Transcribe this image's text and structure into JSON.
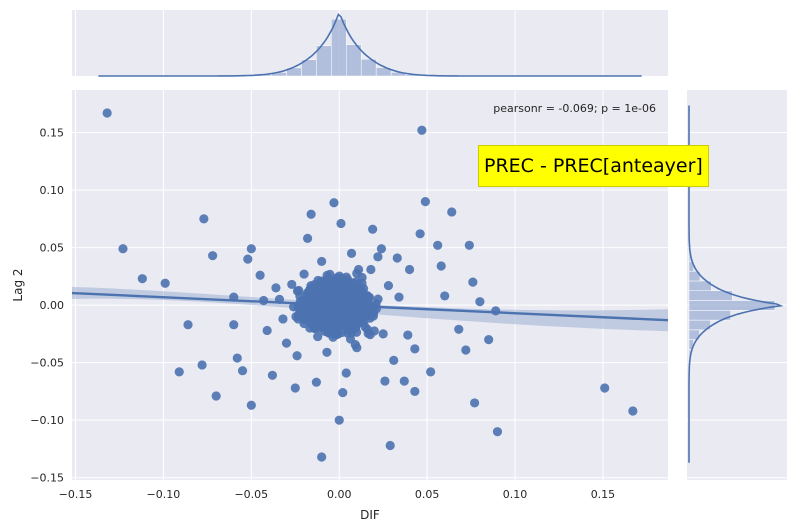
{
  "caption": "PREC - PREC[anteayer]",
  "chart_data": {
    "type": "scatter",
    "title": "",
    "xlabel": "DIF",
    "ylabel": "Lag 2",
    "xlim": [
      -0.152,
      0.187
    ],
    "ylim": [
      -0.152,
      0.187
    ],
    "xticks": [
      "−0.15",
      "−0.10",
      "−0.05",
      "0.00",
      "0.05",
      "0.10",
      "0.15"
    ],
    "yticks": [
      "−0.15",
      "−0.10",
      "−0.05",
      "0.00",
      "0.05",
      "0.10",
      "0.15"
    ],
    "xtick_values": [
      -0.15,
      -0.1,
      -0.05,
      0.0,
      0.05,
      0.1,
      0.15
    ],
    "ytick_values": [
      -0.15,
      -0.1,
      -0.05,
      0.0,
      0.05,
      0.1,
      0.15
    ],
    "annotation": "pearsonr = -0.069; p = 1e-06",
    "grid": true,
    "regression": {
      "x": [
        -0.152,
        0.187
      ],
      "y": [
        0.0105,
        -0.0131
      ]
    },
    "points": [
      [
        -0.132,
        0.167
      ],
      [
        0.047,
        0.152
      ],
      [
        -0.123,
        0.049
      ],
      [
        -0.112,
        0.023
      ],
      [
        -0.099,
        0.019
      ],
      [
        -0.086,
        -0.017
      ],
      [
        -0.077,
        0.075
      ],
      [
        -0.072,
        0.043
      ],
      [
        -0.06,
        0.007
      ],
      [
        -0.06,
        -0.017
      ],
      [
        -0.058,
        -0.046
      ],
      [
        -0.055,
        -0.057
      ],
      [
        -0.052,
        0.04
      ],
      [
        -0.05,
        0.049
      ],
      [
        -0.045,
        0.026
      ],
      [
        -0.043,
        0.004
      ],
      [
        -0.041,
        -0.022
      ],
      [
        -0.038,
        -0.061
      ],
      [
        -0.034,
        0.005
      ],
      [
        -0.03,
        -0.033
      ],
      [
        -0.027,
        0.018
      ],
      [
        -0.024,
        -0.044
      ],
      [
        -0.02,
        0.027
      ],
      [
        -0.016,
        0.079
      ],
      [
        -0.013,
        -0.067
      ],
      [
        -0.01,
        0.038
      ],
      [
        -0.007,
        -0.041
      ],
      [
        -0.004,
        0.012
      ],
      [
        0.001,
        0.071
      ],
      [
        0.004,
        -0.059
      ],
      [
        0.007,
        0.045
      ],
      [
        0.01,
        -0.037
      ],
      [
        0.013,
        0.024
      ],
      [
        0.016,
        -0.021
      ],
      [
        0.019,
        0.066
      ],
      [
        0.022,
        0.042
      ],
      [
        0.025,
        -0.025
      ],
      [
        0.028,
        0.017
      ],
      [
        0.031,
        -0.048
      ],
      [
        0.034,
        0.007
      ],
      [
        0.037,
        -0.066
      ],
      [
        0.04,
        0.031
      ],
      [
        0.043,
        -0.038
      ],
      [
        0.046,
        0.062
      ],
      [
        0.049,
        0.09
      ],
      [
        0.052,
        -0.058
      ],
      [
        0.056,
        0.052
      ],
      [
        0.06,
        0.008
      ],
      [
        0.064,
        0.081
      ],
      [
        0.068,
        -0.021
      ],
      [
        0.072,
        -0.039
      ],
      [
        0.076,
        0.02
      ],
      [
        0.074,
        0.052
      ],
      [
        0.08,
        0.003
      ],
      [
        0.085,
        -0.03
      ],
      [
        0.089,
        -0.005
      ],
      [
        -0.003,
        0.089
      ],
      [
        0.002,
        -0.076
      ],
      [
        0.026,
        -0.066
      ],
      [
        0.043,
        -0.075
      ],
      [
        0.018,
        0.031
      ],
      [
        -0.018,
        0.058
      ],
      [
        0.024,
        0.049
      ],
      [
        0.077,
        -0.085
      ],
      [
        0.09,
        -0.11
      ],
      [
        -0.05,
        -0.087
      ],
      [
        0.029,
        -0.122
      ],
      [
        -0.01,
        -0.132
      ],
      [
        0.0,
        -0.1
      ],
      [
        -0.07,
        -0.079
      ],
      [
        0.151,
        -0.072
      ],
      [
        0.167,
        -0.092
      ],
      [
        -0.091,
        -0.058
      ],
      [
        -0.025,
        -0.072
      ],
      [
        -0.078,
        -0.052
      ],
      [
        0.011,
        0.031
      ],
      [
        0.012,
        -0.015
      ],
      [
        -0.009,
        0.013
      ],
      [
        0.005,
        -0.003
      ],
      [
        -0.015,
        -0.01
      ],
      [
        -0.036,
        0.015
      ],
      [
        0.033,
        0.041
      ],
      [
        0.058,
        0.034
      ],
      [
        -0.032,
        -0.012
      ],
      [
        0.039,
        -0.026
      ]
    ],
    "core_density": "dense cluster of points centred near (0.00, 0.00)",
    "marginal_x": "histogram and KDE of DIF, sharp peak at 0.00",
    "marginal_y": "histogram and KDE of Lag 2, sharp peak at 0.00"
  },
  "colors": {
    "background": "#eaeaf2",
    "point": "#4c72b0",
    "grid": "#ffffff",
    "band": "#9db0d4",
    "caption_bg": "#ffff00"
  }
}
